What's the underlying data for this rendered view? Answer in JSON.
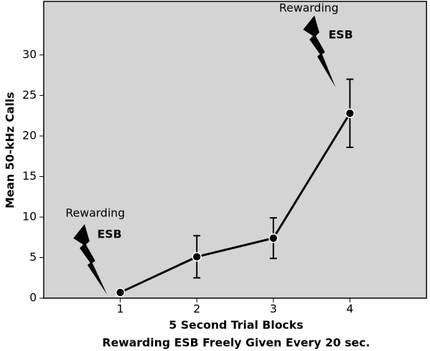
{
  "chart_data": {
    "type": "line",
    "x": [
      1,
      2,
      3,
      4
    ],
    "series": [
      {
        "values": [
          0.7,
          5.1,
          7.4,
          22.8
        ],
        "errors": [
          0,
          2.6,
          2.5,
          4.2
        ],
        "color": "#000000"
      }
    ],
    "xlim": [
      0,
      5
    ],
    "xticks": [
      1,
      2,
      3,
      4
    ],
    "ylim": [
      0,
      36.6
    ],
    "yticks": [
      0,
      5,
      10,
      15,
      20,
      25,
      30
    ],
    "xlabel": "5 Second Trial Blocks",
    "ylabel": "Mean 50-kHz Calls",
    "caption": "Rewarding ESB Freely Given Every 20 sec.",
    "annotations": [
      "Rewarding",
      "ESB",
      "Rewarding",
      "ESB"
    ],
    "background": "#d4d4d4"
  }
}
